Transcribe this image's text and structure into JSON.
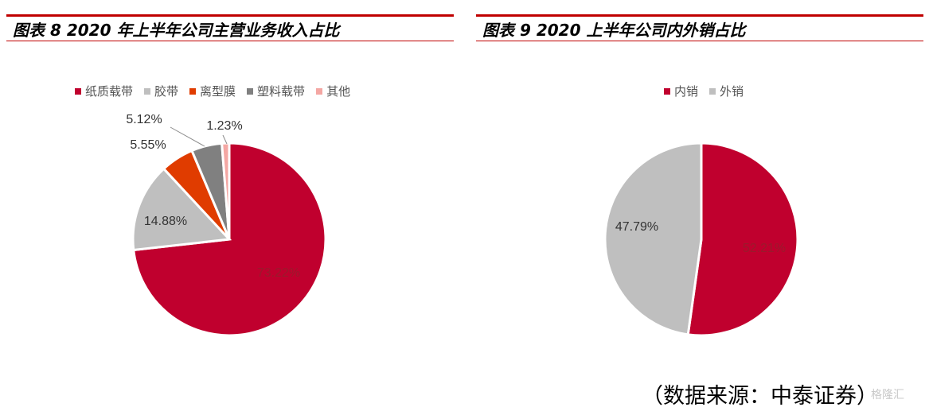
{
  "titles": {
    "chart1": "图表 8 2020 年上半年公司主营业务收入占比",
    "chart2": "图表 9 2020 上半年公司内外销占比"
  },
  "source": "（数据来源：中泰证券）",
  "watermark": "格隆汇",
  "chart_data": [
    {
      "type": "pie",
      "title": "图表 8 2020 年上半年公司主营业务收入占比",
      "legend_position": "top",
      "categories": [
        "纸质载带",
        "胶带",
        "离型膜",
        "塑料载带",
        "其他"
      ],
      "values": [
        73.22,
        14.88,
        5.55,
        5.12,
        1.23
      ],
      "labels": [
        "73.22%",
        "14.88%",
        "5.55%",
        "5.12%",
        "1.23%"
      ],
      "colors": [
        "#c0002e",
        "#bfbfbf",
        "#e03c00",
        "#808080",
        "#f4a7a3"
      ]
    },
    {
      "type": "pie",
      "title": "图表 9 2020 上半年公司内外销占比",
      "legend_position": "top",
      "categories": [
        "内销",
        "外销"
      ],
      "values": [
        52.21,
        47.79
      ],
      "labels": [
        "52.21%",
        "47.79%"
      ],
      "colors": [
        "#c0002e",
        "#bfbfbf"
      ]
    }
  ]
}
